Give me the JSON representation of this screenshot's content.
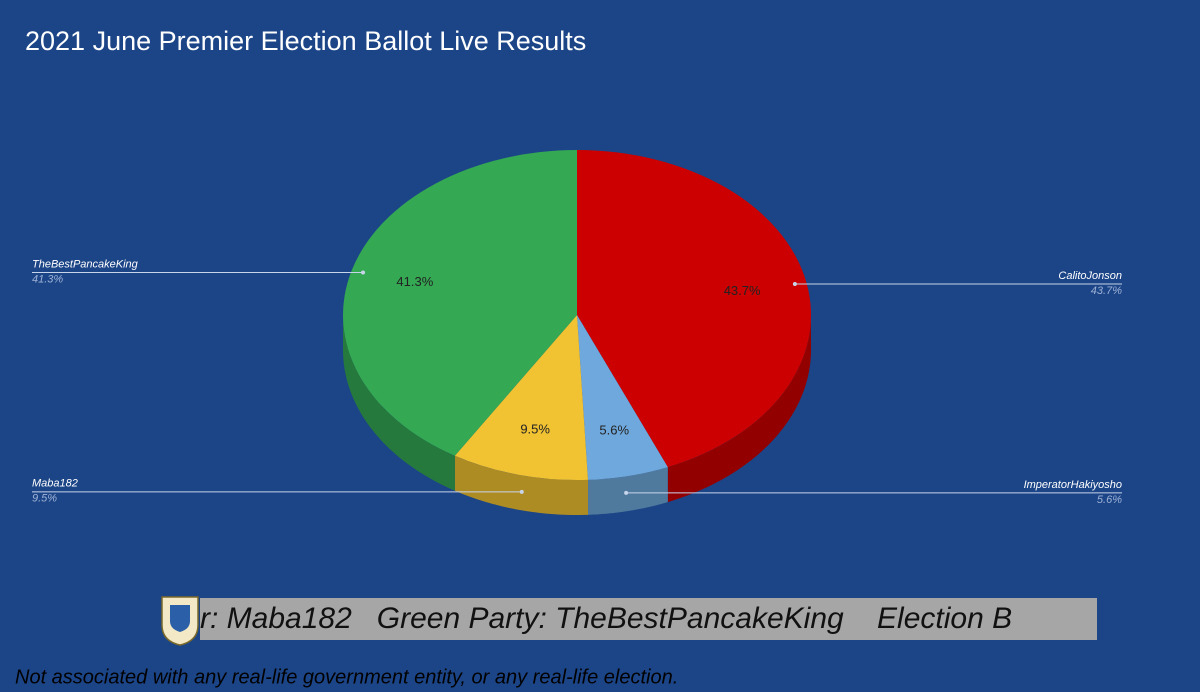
{
  "chart_data": {
    "type": "pie",
    "title": "2021 June Premier Election Ballot Live Results",
    "categories": [
      "CalitoJonson",
      "ImperatorHakiyosho",
      "Maba182",
      "TheBestPancakeKing"
    ],
    "values": [
      43.7,
      5.6,
      9.5,
      41.3
    ],
    "value_labels": [
      "43.7%",
      "5.6%",
      "9.5%",
      "41.3%"
    ],
    "colors": [
      "#cc0000",
      "#6fa8dc",
      "#f1c232",
      "#34a853"
    ]
  },
  "ticker": "r: Maba182   Green Party: TheBestPancakeKing    Election B",
  "disclaimer": "Not associated with any real-life government entity, or any real-life election."
}
